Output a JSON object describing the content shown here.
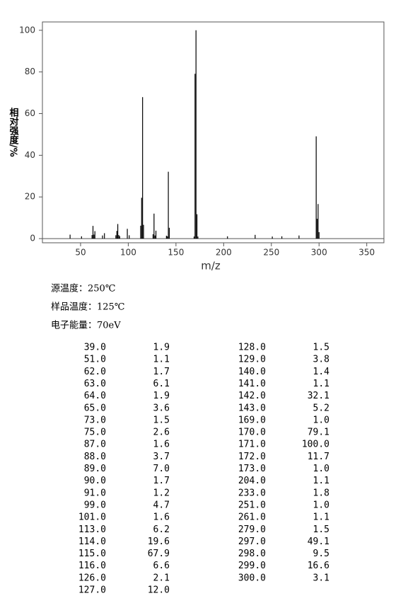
{
  "chart_data": {
    "type": "bar",
    "x_label": "m/z",
    "y_label": "相对强度/%",
    "x": [
      39,
      51,
      62,
      63,
      64,
      65,
      73,
      75,
      87,
      88,
      89,
      90,
      91,
      99,
      101,
      113,
      114,
      115,
      116,
      126,
      127,
      128,
      129,
      140,
      141,
      142,
      143,
      169,
      170,
      171,
      172,
      173,
      204,
      233,
      251,
      261,
      279,
      297,
      298,
      299,
      300
    ],
    "values": [
      1.9,
      1.1,
      1.7,
      6.1,
      1.9,
      3.6,
      1.5,
      2.6,
      1.6,
      3.7,
      7.0,
      1.7,
      1.2,
      4.7,
      1.6,
      6.2,
      19.6,
      67.9,
      6.6,
      2.1,
      12.0,
      1.5,
      3.8,
      1.4,
      1.1,
      32.1,
      5.2,
      1.0,
      79.1,
      100.0,
      11.7,
      1.0,
      1.1,
      1.8,
      1.0,
      1.1,
      1.5,
      49.1,
      9.5,
      16.6,
      3.1
    ],
    "color": "#000000",
    "xlim": [
      10,
      368
    ],
    "ylim": [
      -2,
      104
    ],
    "xticks": [
      50,
      100,
      150,
      200,
      250,
      300,
      350
    ],
    "yticks": [
      0,
      20,
      40,
      60,
      80,
      100
    ]
  },
  "conditions": [
    "源温度：250℃",
    "样品温度：125℃",
    "电子能量：70eV"
  ],
  "table": {
    "rows": [
      [
        "39.0",
        "1.9"
      ],
      [
        "51.0",
        "1.1"
      ],
      [
        "62.0",
        "1.7"
      ],
      [
        "63.0",
        "6.1"
      ],
      [
        "64.0",
        "1.9"
      ],
      [
        "65.0",
        "3.6"
      ],
      [
        "73.0",
        "1.5"
      ],
      [
        "75.0",
        "2.6"
      ],
      [
        "87.0",
        "1.6"
      ],
      [
        "88.0",
        "3.7"
      ],
      [
        "89.0",
        "7.0"
      ],
      [
        "90.0",
        "1.7"
      ],
      [
        "91.0",
        "1.2"
      ],
      [
        "99.0",
        "4.7"
      ],
      [
        "101.0",
        "1.6"
      ],
      [
        "113.0",
        "6.2"
      ],
      [
        "114.0",
        "19.6"
      ],
      [
        "115.0",
        "67.9"
      ],
      [
        "116.0",
        "6.6"
      ],
      [
        "126.0",
        "2.1"
      ],
      [
        "127.0",
        "12.0"
      ],
      [
        "128.0",
        "1.5"
      ],
      [
        "129.0",
        "3.8"
      ],
      [
        "140.0",
        "1.4"
      ],
      [
        "141.0",
        "1.1"
      ],
      [
        "142.0",
        "32.1"
      ],
      [
        "143.0",
        "5.2"
      ],
      [
        "169.0",
        "1.0"
      ],
      [
        "170.0",
        "79.1"
      ],
      [
        "171.0",
        "100.0"
      ],
      [
        "172.0",
        "11.7"
      ],
      [
        "173.0",
        "1.0"
      ],
      [
        "204.0",
        "1.1"
      ],
      [
        "233.0",
        "1.8"
      ],
      [
        "251.0",
        "1.0"
      ],
      [
        "261.0",
        "1.1"
      ],
      [
        "279.0",
        "1.5"
      ],
      [
        "297.0",
        "49.1"
      ],
      [
        "298.0",
        "9.5"
      ],
      [
        "299.0",
        "16.6"
      ],
      [
        "300.0",
        "3.1"
      ]
    ]
  }
}
